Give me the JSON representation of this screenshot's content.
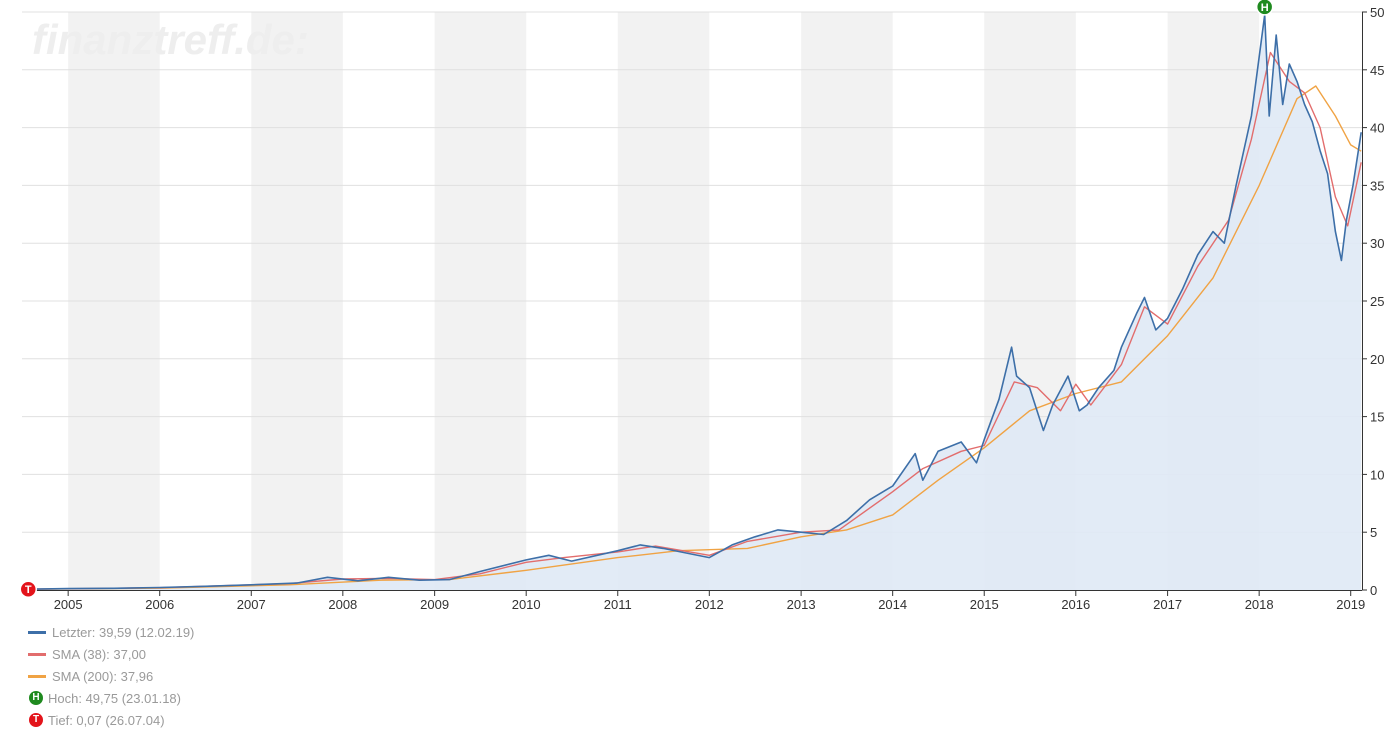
{
  "watermark": "finanztreff.de:",
  "chart_data": {
    "type": "area",
    "x_ticks": [
      "2005",
      "2006",
      "2007",
      "2008",
      "2009",
      "2010",
      "2011",
      "2012",
      "2013",
      "2014",
      "2015",
      "2016",
      "2017",
      "2018",
      "2019"
    ],
    "y_ticks": [
      "0",
      "5",
      "10",
      "15",
      "20",
      "25",
      "30",
      "35",
      "40",
      "45",
      "50"
    ],
    "ylim": [
      0,
      50
    ],
    "xlim": [
      "2004-07-01",
      "2019-02-15"
    ],
    "grid": true,
    "y_axis_side": "right",
    "legend_position": "bottom-left",
    "series": [
      {
        "name": "Letzter",
        "color": "#3d6fa8",
        "points": [
          [
            "2004-07-26",
            0.07
          ],
          [
            "2005-01-01",
            0.12
          ],
          [
            "2005-07-01",
            0.15
          ],
          [
            "2006-01-01",
            0.22
          ],
          [
            "2006-07-01",
            0.32
          ],
          [
            "2007-01-01",
            0.45
          ],
          [
            "2007-07-01",
            0.6
          ],
          [
            "2007-11-01",
            1.1
          ],
          [
            "2008-03-01",
            0.8
          ],
          [
            "2008-07-01",
            1.1
          ],
          [
            "2008-11-01",
            0.85
          ],
          [
            "2009-03-01",
            0.9
          ],
          [
            "2009-07-01",
            1.6
          ],
          [
            "2010-01-01",
            2.6
          ],
          [
            "2010-04-01",
            3.0
          ],
          [
            "2010-07-01",
            2.5
          ],
          [
            "2011-01-01",
            3.4
          ],
          [
            "2011-04-01",
            3.9
          ],
          [
            "2011-07-01",
            3.6
          ],
          [
            "2011-10-01",
            3.2
          ],
          [
            "2012-01-01",
            2.8
          ],
          [
            "2012-04-01",
            3.9
          ],
          [
            "2012-07-01",
            4.6
          ],
          [
            "2012-10-01",
            5.2
          ],
          [
            "2013-01-01",
            5.0
          ],
          [
            "2013-04-01",
            4.8
          ],
          [
            "2013-07-01",
            6.0
          ],
          [
            "2013-10-01",
            7.8
          ],
          [
            "2014-01-01",
            9.0
          ],
          [
            "2014-04-01",
            11.8
          ],
          [
            "2014-05-01",
            9.5
          ],
          [
            "2014-07-01",
            12.0
          ],
          [
            "2014-10-01",
            12.8
          ],
          [
            "2014-12-01",
            11.0
          ],
          [
            "2015-01-01",
            13.0
          ],
          [
            "2015-03-01",
            16.5
          ],
          [
            "2015-04-20",
            21.0
          ],
          [
            "2015-05-10",
            18.5
          ],
          [
            "2015-07-01",
            17.5
          ],
          [
            "2015-08-25",
            13.8
          ],
          [
            "2015-10-01",
            16.0
          ],
          [
            "2015-12-01",
            18.5
          ],
          [
            "2016-01-15",
            15.5
          ],
          [
            "2016-02-15",
            16.0
          ],
          [
            "2016-04-01",
            17.5
          ],
          [
            "2016-06-01",
            19.0
          ],
          [
            "2016-07-01",
            21.0
          ],
          [
            "2016-09-01",
            24.0
          ],
          [
            "2016-10-01",
            25.3
          ],
          [
            "2016-11-15",
            22.5
          ],
          [
            "2017-01-01",
            23.5
          ],
          [
            "2017-03-01",
            26.0
          ],
          [
            "2017-05-01",
            29.0
          ],
          [
            "2017-07-01",
            31.0
          ],
          [
            "2017-08-15",
            30.0
          ],
          [
            "2017-10-01",
            35.0
          ],
          [
            "2017-12-01",
            41.0
          ],
          [
            "2018-01-23",
            49.75
          ],
          [
            "2018-02-10",
            41.0
          ],
          [
            "2018-03-10",
            48.0
          ],
          [
            "2018-04-05",
            42.0
          ],
          [
            "2018-05-01",
            45.5
          ],
          [
            "2018-06-01",
            44.0
          ],
          [
            "2018-07-01",
            42.0
          ],
          [
            "2018-08-01",
            40.5
          ],
          [
            "2018-09-01",
            38.0
          ],
          [
            "2018-10-01",
            36.0
          ],
          [
            "2018-11-01",
            31.0
          ],
          [
            "2018-11-25",
            28.5
          ],
          [
            "2018-12-15",
            32.0
          ],
          [
            "2019-01-10",
            35.0
          ],
          [
            "2019-02-12",
            39.59
          ]
        ]
      },
      {
        "name": "SMA (38)",
        "color": "#e26d6d",
        "points": [
          [
            "2004-07-26",
            0.07
          ],
          [
            "2006-01-01",
            0.2
          ],
          [
            "2007-06-01",
            0.55
          ],
          [
            "2008-01-01",
            0.95
          ],
          [
            "2008-07-01",
            1.0
          ],
          [
            "2009-01-01",
            0.9
          ],
          [
            "2009-07-01",
            1.4
          ],
          [
            "2010-01-01",
            2.4
          ],
          [
            "2010-06-01",
            2.8
          ],
          [
            "2011-01-01",
            3.3
          ],
          [
            "2011-06-01",
            3.8
          ],
          [
            "2012-01-01",
            3.0
          ],
          [
            "2012-06-01",
            4.2
          ],
          [
            "2013-01-01",
            5.0
          ],
          [
            "2013-06-01",
            5.2
          ],
          [
            "2014-01-01",
            8.5
          ],
          [
            "2014-05-01",
            10.5
          ],
          [
            "2014-10-01",
            12.0
          ],
          [
            "2015-01-01",
            12.5
          ],
          [
            "2015-05-01",
            18.0
          ],
          [
            "2015-08-01",
            17.5
          ],
          [
            "2015-11-01",
            15.5
          ],
          [
            "2016-01-01",
            17.8
          ],
          [
            "2016-03-01",
            16.0
          ],
          [
            "2016-07-01",
            19.5
          ],
          [
            "2016-10-01",
            24.5
          ],
          [
            "2017-01-01",
            23.0
          ],
          [
            "2017-05-01",
            28.0
          ],
          [
            "2017-09-01",
            32.0
          ],
          [
            "2017-12-01",
            39.0
          ],
          [
            "2018-02-15",
            46.5
          ],
          [
            "2018-05-01",
            44.0
          ],
          [
            "2018-07-01",
            43.0
          ],
          [
            "2018-09-01",
            40.0
          ],
          [
            "2018-11-01",
            34.0
          ],
          [
            "2018-12-20",
            31.5
          ],
          [
            "2019-02-12",
            37.0
          ]
        ]
      },
      {
        "name": "SMA (200)",
        "color": "#f0a344",
        "points": [
          [
            "2004-07-26",
            0.07
          ],
          [
            "2006-01-01",
            0.16
          ],
          [
            "2007-06-01",
            0.45
          ],
          [
            "2008-06-01",
            0.85
          ],
          [
            "2009-03-01",
            0.9
          ],
          [
            "2010-01-01",
            1.7
          ],
          [
            "2011-01-01",
            2.8
          ],
          [
            "2011-09-01",
            3.4
          ],
          [
            "2012-06-01",
            3.6
          ],
          [
            "2013-01-01",
            4.6
          ],
          [
            "2013-07-01",
            5.2
          ],
          [
            "2014-01-01",
            6.5
          ],
          [
            "2014-07-01",
            9.5
          ],
          [
            "2015-01-01",
            12.3
          ],
          [
            "2015-07-01",
            15.5
          ],
          [
            "2016-01-01",
            17.0
          ],
          [
            "2016-07-01",
            18.0
          ],
          [
            "2017-01-01",
            22.0
          ],
          [
            "2017-07-01",
            27.0
          ],
          [
            "2018-01-01",
            35.0
          ],
          [
            "2018-06-01",
            42.5
          ],
          [
            "2018-08-15",
            43.6
          ],
          [
            "2018-11-01",
            41.0
          ],
          [
            "2019-01-01",
            38.5
          ],
          [
            "2019-02-12",
            37.96
          ]
        ]
      }
    ],
    "markers": [
      {
        "label": "H",
        "date": "2018-01-23",
        "value": 49.75,
        "color": "#1f8a1f"
      },
      {
        "label": "T",
        "date": "2004-07-26",
        "value": 0.07,
        "color": "#e3141b"
      }
    ]
  },
  "legend": [
    {
      "type": "line",
      "color": "#3d6fa8",
      "text": "Letzter: 39,59 (12.02.19)"
    },
    {
      "type": "line",
      "color": "#e26d6d",
      "text": "SMA (38): 37,00"
    },
    {
      "type": "line",
      "color": "#f0a344",
      "text": "SMA (200): 37,96"
    },
    {
      "type": "badge",
      "color": "#1f8a1f",
      "letter": "H",
      "text": "Hoch: 49,75 (23.01.18)"
    },
    {
      "type": "badge",
      "color": "#e3141b",
      "letter": "T",
      "text": "Tief: 0,07 (26.07.04)"
    }
  ]
}
